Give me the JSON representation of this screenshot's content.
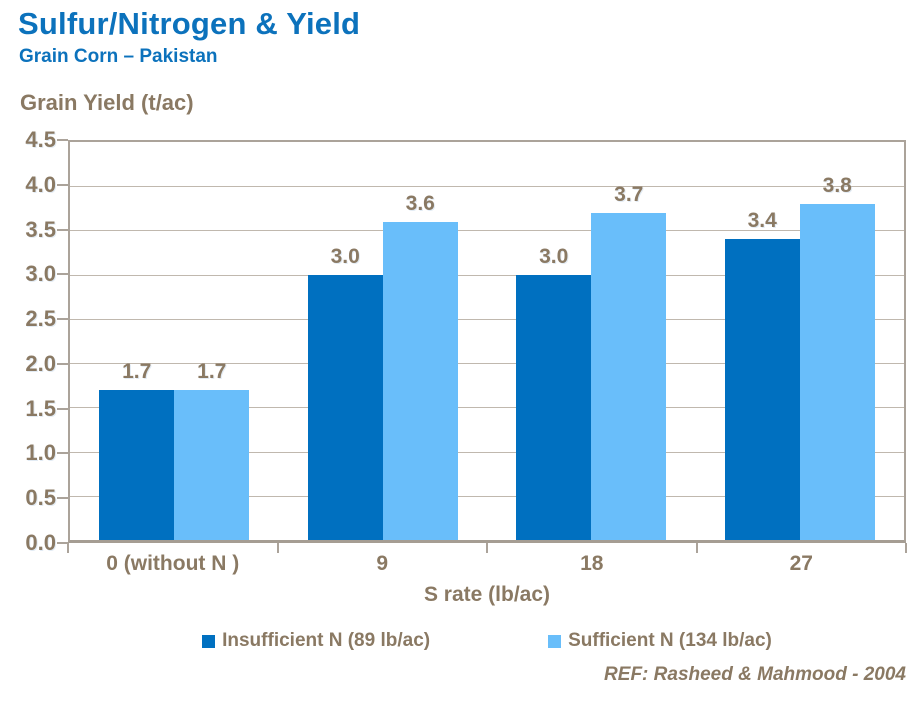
{
  "page": {
    "title": "Sulfur/Nitrogen & Yield",
    "subtitle": "Grain Corn – Pakistan",
    "reference": "REF: Rasheed & Mahmood - 2004"
  },
  "chart_data": {
    "type": "bar",
    "title": "Sulfur/Nitrogen & Yield",
    "subtitle": "Grain Corn – Pakistan",
    "xlabel": "S rate (lb/ac)",
    "ylabel": "Grain Yield (t/ac)",
    "categories": [
      "0 (without N )",
      "9",
      "18",
      "27"
    ],
    "series": [
      {
        "name": "Insufficient N (89 lb/ac)",
        "color": "#0070C0",
        "values": [
          1.7,
          3.0,
          3.0,
          3.4
        ]
      },
      {
        "name": "Sufficient N (134 lb/ac)",
        "color": "#69BEFA",
        "values": [
          1.7,
          3.6,
          3.7,
          3.8
        ]
      }
    ],
    "value_labels": [
      [
        "1.7",
        "3.0",
        "3.0",
        "3.4"
      ],
      [
        "1.7",
        "3.6",
        "3.7",
        "3.8"
      ]
    ],
    "ylim": [
      0.0,
      4.5
    ],
    "ytick_step": 0.5,
    "ytick_labels": [
      "0.0",
      "0.5",
      "1.0",
      "1.5",
      "2.0",
      "2.5",
      "3.0",
      "3.5",
      "4.0",
      "4.5"
    ],
    "grid": "horizontal",
    "legend_position": "bottom",
    "colors": {
      "title_blue": "#0C72BC",
      "axis_text_brown": "#8A7963",
      "plot_border": "#ABA39A",
      "gridline": "#C0B8AE"
    }
  }
}
